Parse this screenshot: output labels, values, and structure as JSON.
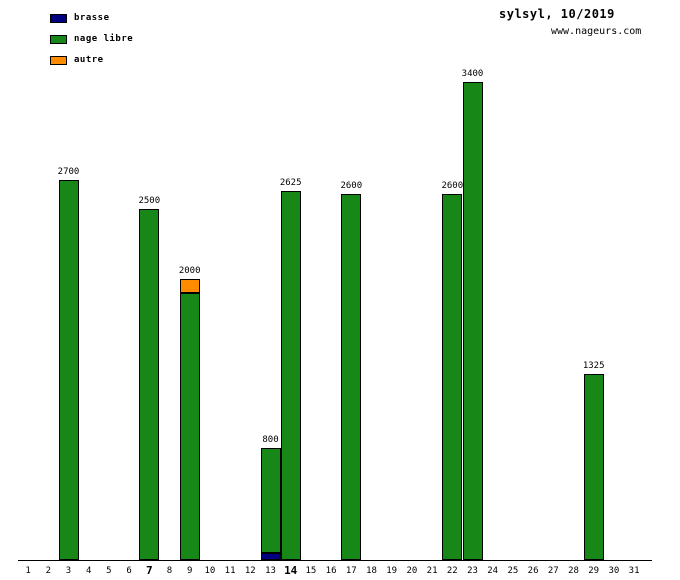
{
  "title": "sylsyl, 10/2019",
  "website": "www.nageurs.com",
  "legend": [
    {
      "key": "brasse",
      "label": "brasse",
      "color": "#000080"
    },
    {
      "key": "nage_libre",
      "label": "nage libre",
      "color": "#178717"
    },
    {
      "key": "autre",
      "label": "autre",
      "color": "#ff8c00"
    }
  ],
  "chart_data": {
    "type": "bar",
    "stacked": true,
    "title": "sylsyl, 10/2019",
    "xlabel": "",
    "ylabel": "",
    "ylim": [
      0,
      3400
    ],
    "grid": false,
    "legend_position": "top-left",
    "series_keys": [
      "brasse",
      "nage_libre",
      "autre"
    ],
    "x_tick_labels": [
      "1",
      "2",
      "3",
      "4",
      "5",
      "6",
      "7",
      "8",
      "9",
      "10",
      "11",
      "12",
      "13",
      "14",
      "15",
      "16",
      "17",
      "18",
      "19",
      "20",
      "21",
      "22",
      "23",
      "24",
      "25",
      "26",
      "27",
      "28",
      "29",
      "30",
      "31"
    ],
    "bold_days": [
      7,
      14
    ],
    "bars": [
      {
        "day": 3,
        "total": 2700,
        "segments": [
          {
            "series": "nage_libre",
            "value": 2700
          }
        ]
      },
      {
        "day": 7,
        "total": 2500,
        "segments": [
          {
            "series": "nage_libre",
            "value": 2500
          }
        ]
      },
      {
        "day": 9,
        "total": 2000,
        "segments": [
          {
            "series": "nage_libre",
            "value": 1900
          },
          {
            "series": "autre",
            "value": 100
          }
        ]
      },
      {
        "day": 13,
        "total": 800,
        "segments": [
          {
            "series": "brasse",
            "value": 50
          },
          {
            "series": "nage_libre",
            "value": 750
          }
        ]
      },
      {
        "day": 14,
        "total": 2625,
        "segments": [
          {
            "series": "nage_libre",
            "value": 2625
          }
        ]
      },
      {
        "day": 17,
        "total": 2600,
        "segments": [
          {
            "series": "nage_libre",
            "value": 2600
          }
        ]
      },
      {
        "day": 22,
        "total": 2600,
        "segments": [
          {
            "series": "nage_libre",
            "value": 2600
          }
        ]
      },
      {
        "day": 23,
        "total": 3400,
        "segments": [
          {
            "series": "nage_libre",
            "value": 3400
          }
        ]
      },
      {
        "day": 29,
        "total": 1325,
        "segments": [
          {
            "series": "nage_libre",
            "value": 1325
          }
        ]
      }
    ]
  }
}
